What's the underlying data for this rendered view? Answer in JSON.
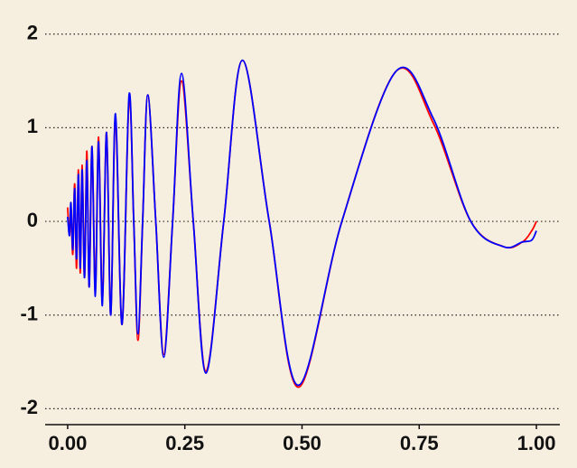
{
  "chart_data": {
    "type": "line",
    "x": [
      0.0,
      0.004,
      0.007,
      0.011,
      0.015,
      0.019,
      0.023,
      0.027,
      0.031,
      0.036,
      0.041,
      0.046,
      0.052,
      0.059,
      0.066,
      0.074,
      0.083,
      0.092,
      0.102,
      0.116,
      0.131,
      0.141,
      0.15,
      0.16,
      0.171,
      0.188,
      0.205,
      0.224,
      0.243,
      0.268,
      0.295,
      0.333,
      0.373,
      0.43,
      0.492,
      0.585,
      0.7,
      0.78,
      0.86,
      0.93,
      0.97,
      0.99,
      1.0
    ],
    "series": [
      {
        "color": "#ff0000",
        "values": [
          0.15,
          -0.15,
          0.15,
          -0.35,
          0.4,
          -0.5,
          0.55,
          -0.55,
          0.6,
          -0.6,
          0.75,
          -0.7,
          0.8,
          -0.75,
          0.9,
          -0.85,
          0.95,
          -1.0,
          1.1,
          -1.1,
          1.3,
          0,
          -1.27,
          0,
          1.35,
          0,
          -1.42,
          0,
          1.5,
          0,
          -1.6,
          0,
          1.72,
          0,
          -1.77,
          0,
          1.6,
          1.05,
          0,
          -0.27,
          -0.22,
          -0.1,
          0.0
        ]
      },
      {
        "color": "#0000ff",
        "values": [
          0.05,
          -0.15,
          0.2,
          -0.3,
          0.35,
          -0.4,
          0.5,
          -0.5,
          0.55,
          -0.6,
          0.65,
          -0.7,
          0.8,
          -0.8,
          0.85,
          -0.9,
          0.95,
          -1.0,
          1.15,
          -1.1,
          1.35,
          0,
          -1.2,
          0,
          1.35,
          0,
          -1.45,
          0,
          1.58,
          0,
          -1.62,
          0,
          1.72,
          0,
          -1.75,
          0,
          1.6,
          1.1,
          0,
          -0.27,
          -0.22,
          -0.2,
          -0.1
        ]
      }
    ],
    "xlim": [
      -0.048,
      1.05
    ],
    "ylim": [
      -2.17,
      2.2
    ],
    "xticks": [
      {
        "value": 0,
        "label": "0.00"
      },
      {
        "value": 0.25,
        "label": "0.25"
      },
      {
        "value": 0.5,
        "label": "0.50"
      },
      {
        "value": 0.75,
        "label": "0.75"
      },
      {
        "value": 1,
        "label": "1.00"
      }
    ],
    "yticks": [
      -2,
      -1,
      0,
      1,
      2
    ],
    "grid": true
  }
}
